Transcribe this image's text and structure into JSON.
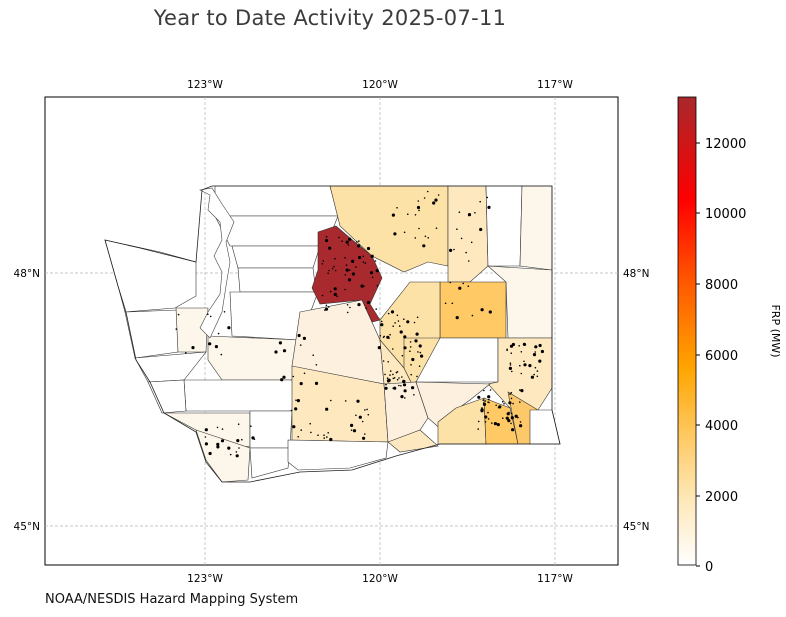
{
  "title": "Year to Date Activity 2025-07-11",
  "credit": "NOAA/NESDIS Hazard Mapping System",
  "map": {
    "lon_ticks": [
      "123°W",
      "120°W",
      "117°W"
    ],
    "lat_ticks_left": [
      "48°N",
      "45°N"
    ],
    "lat_ticks_right": [
      "48°N",
      "45°N"
    ]
  },
  "colorbar": {
    "label": "FRP (MW)",
    "ticks": [
      "0",
      "2000",
      "4000",
      "6000",
      "8000",
      "10000",
      "12000"
    ],
    "colors": [
      "#ffffff",
      "#fde6b3",
      "#fdc86a",
      "#ffa500",
      "#ff5a00",
      "#ff0000",
      "#a8282c"
    ]
  }
}
